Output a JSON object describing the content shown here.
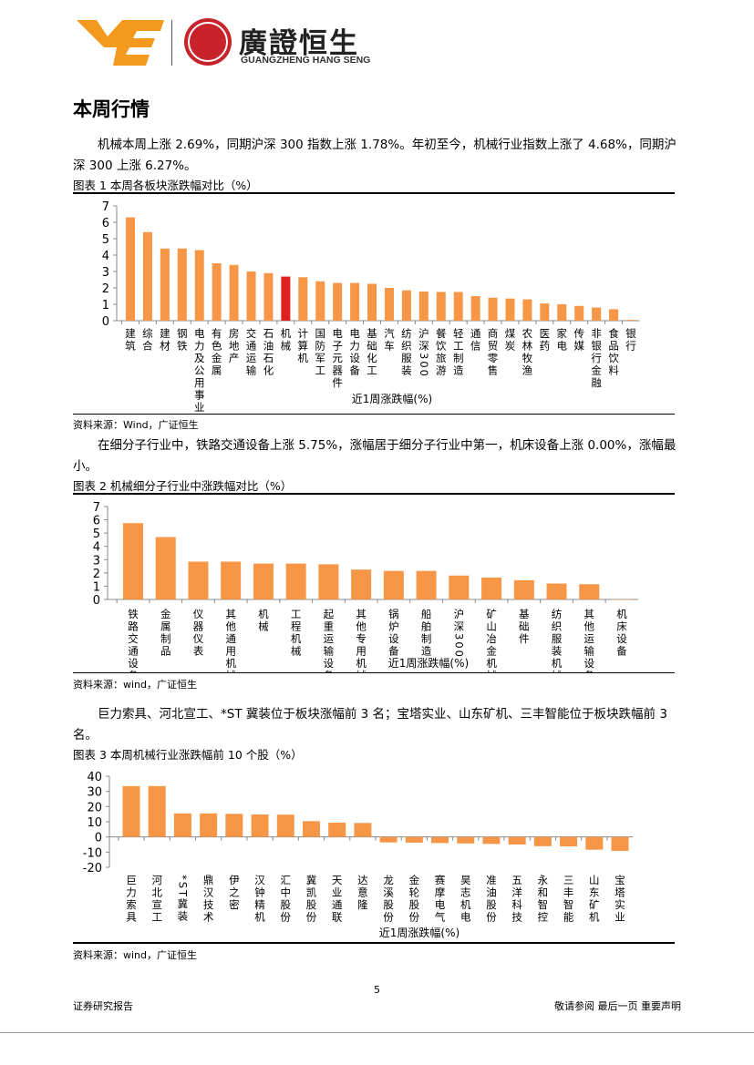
{
  "header": {
    "logo_cn": "廣證恒生",
    "logo_en": "GUANGZHENG HANG SENG"
  },
  "section_title": "本周行情",
  "paragraphs": [
    "机械本周上涨 2.69%，同期沪深 300 指数上涨 1.78%。年初至今，机械行业指数上涨了 4.68%，同期沪深 300 上涨 6.27%。",
    "在细分子行业中，铁路交通设备上涨 5.75%，涨幅居于细分子行业中第一，机床设备上涨 0.00%，涨幅最小。",
    "巨力索具、河北宣工、*ST 冀装位于板块涨幅前 3 名；宝塔实业、山东矿机、三丰智能位于板块跌幅前 3 名。"
  ],
  "figures": [
    {
      "title": "图表 1 本周各板块涨跌幅对比（%）",
      "source": "资料来源：Wind，广证恒生"
    },
    {
      "title": "图表 2 机械细分子行业中涨跌幅对比（%）",
      "source": "资料来源：wind，广证恒生"
    },
    {
      "title": "图表 3 本周机械行业涨跌幅前 10 个股（%）",
      "source": "资料来源：wind，广证恒生"
    }
  ],
  "chart_data": [
    {
      "type": "bar",
      "xlabel": "近1周涨跌幅(%)",
      "ylabel": "",
      "ylim": [
        0,
        7
      ],
      "yticks": [
        0,
        1,
        2,
        3,
        4,
        5,
        6,
        7
      ],
      "grid": false,
      "bar_color": "#f79646",
      "highlight_color": "#e02020",
      "highlight": "机械",
      "categories": [
        "建筑",
        "综合",
        "建材",
        "钢铁",
        "电力及公用事业",
        "有色金属",
        "房地产",
        "交通运输",
        "石油石化",
        "机械",
        "计算机",
        "国防军工",
        "电子元器件",
        "电力设备",
        "基础化工",
        "汽车",
        "纺织服装",
        "沪深300",
        "餐饮旅游",
        "轻工制造",
        "通信",
        "商贸零售",
        "煤炭",
        "农林牧渔",
        "医药",
        "家电",
        "传媒",
        "非银行金融",
        "食品饮料",
        "银行"
      ],
      "values": [
        6.3,
        5.4,
        4.4,
        4.4,
        4.3,
        3.5,
        3.4,
        3.0,
        2.9,
        2.69,
        2.65,
        2.4,
        2.3,
        2.3,
        2.25,
        2.0,
        1.85,
        1.78,
        1.75,
        1.75,
        1.5,
        1.4,
        1.35,
        1.3,
        1.05,
        1.0,
        0.9,
        0.8,
        0.7,
        0.05
      ]
    },
    {
      "type": "bar",
      "xlabel": "近1周涨跌幅(%)",
      "ylabel": "",
      "ylim": [
        0,
        7
      ],
      "yticks": [
        0,
        1,
        2,
        3,
        4,
        5,
        6,
        7
      ],
      "grid": false,
      "bar_color": "#f79646",
      "categories": [
        "铁路交通设备",
        "金属制品",
        "仪器仪表",
        "其他通用机械",
        "机械",
        "工程机械",
        "起重运输设备",
        "其他专用机械",
        "锅炉设备",
        "船舶制造",
        "沪深300",
        "矿山冶金机械",
        "基础件",
        "纺织服装机械",
        "其他运输设备",
        "机床设备"
      ],
      "values": [
        5.75,
        4.7,
        2.85,
        2.85,
        2.7,
        2.7,
        2.65,
        2.25,
        2.15,
        2.15,
        1.8,
        1.65,
        1.45,
        1.2,
        1.15,
        0.0
      ]
    },
    {
      "type": "bar",
      "xlabel": "近1周涨跌幅(%)",
      "ylabel": "",
      "ylim": [
        -20,
        40
      ],
      "yticks": [
        -20,
        -10,
        0,
        10,
        20,
        30,
        40
      ],
      "grid": false,
      "bar_color": "#f79646",
      "categories": [
        "巨力索具",
        "河北宣工",
        "*ST冀装",
        "鼎汉技术",
        "伊之密",
        "汉钟精机",
        "汇中股份",
        "冀凯股份",
        "天业通联",
        "达意隆",
        "龙溪股份",
        "金轮股份",
        "赛摩电气",
        "昊志机电",
        "准油股份",
        "五洋科技",
        "永和智控",
        "三丰智能",
        "山东矿机",
        "宝塔实业"
      ],
      "values": [
        33.5,
        33.5,
        15.5,
        15.5,
        15.2,
        14.8,
        14.7,
        10.4,
        9.4,
        9.2,
        -3.6,
        -3.8,
        -4.0,
        -4.3,
        -4.6,
        -5.0,
        -6.1,
        -6.2,
        -8.4,
        -9.2
      ]
    }
  ],
  "footer": {
    "page_number": "5",
    "left": "证券研究报告",
    "right": "敬请参阅 最后一页 重要声明"
  }
}
